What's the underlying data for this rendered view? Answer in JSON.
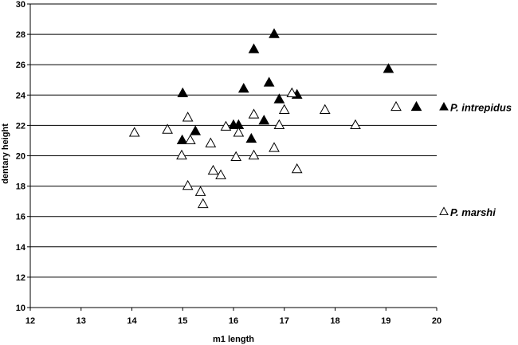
{
  "chart_data": {
    "type": "scatter",
    "xlabel": "m1 length",
    "ylabel": "dentary height",
    "xlim": [
      12,
      20
    ],
    "ylim": [
      10,
      30
    ],
    "xticks": [
      12,
      13,
      14,
      15,
      16,
      17,
      18,
      19,
      20
    ],
    "yticks": [
      10,
      12,
      14,
      16,
      18,
      20,
      22,
      24,
      26,
      28,
      30
    ],
    "grid": "horizontal",
    "legend_position": "right",
    "series": [
      {
        "name": "P. intrepidus",
        "marker": "filled-triangle",
        "color": "#000000",
        "points": [
          [
            15.0,
            24.1
          ],
          [
            14.99,
            21.0
          ],
          [
            15.25,
            21.6
          ],
          [
            16.0,
            22.0
          ],
          [
            16.1,
            22.0
          ],
          [
            16.2,
            24.4
          ],
          [
            16.35,
            21.1
          ],
          [
            16.4,
            27.0
          ],
          [
            16.6,
            22.3
          ],
          [
            16.7,
            24.8
          ],
          [
            16.8,
            28.0
          ],
          [
            16.9,
            23.7
          ],
          [
            17.25,
            24.0
          ],
          [
            19.05,
            25.7
          ],
          [
            19.6,
            23.2
          ]
        ]
      },
      {
        "name": "P. marshi",
        "marker": "open-triangle",
        "color": "#000000",
        "points": [
          [
            14.05,
            21.5
          ],
          [
            14.7,
            21.7
          ],
          [
            14.98,
            20.0
          ],
          [
            15.1,
            22.5
          ],
          [
            15.15,
            21.0
          ],
          [
            15.1,
            18.0
          ],
          [
            15.35,
            17.6
          ],
          [
            15.4,
            16.8
          ],
          [
            15.55,
            20.8
          ],
          [
            15.6,
            19.0
          ],
          [
            15.75,
            18.7
          ],
          [
            15.85,
            21.9
          ],
          [
            16.05,
            19.9
          ],
          [
            16.1,
            21.5
          ],
          [
            16.4,
            22.7
          ],
          [
            16.4,
            20.0
          ],
          [
            16.8,
            20.5
          ],
          [
            16.9,
            22.0
          ],
          [
            17.0,
            23.0
          ],
          [
            17.15,
            24.1
          ],
          [
            17.25,
            19.1
          ],
          [
            17.8,
            23.0
          ],
          [
            18.4,
            22.0
          ],
          [
            19.2,
            23.2
          ]
        ]
      }
    ]
  }
}
